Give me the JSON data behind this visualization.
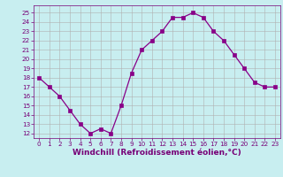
{
  "x": [
    0,
    1,
    2,
    3,
    4,
    5,
    6,
    7,
    8,
    9,
    10,
    11,
    12,
    13,
    14,
    15,
    16,
    17,
    18,
    19,
    20,
    21,
    22,
    23
  ],
  "y": [
    18,
    17,
    16,
    14.5,
    13,
    12,
    12.5,
    12,
    15,
    18.5,
    21,
    22,
    23,
    24.5,
    24.5,
    25,
    24.5,
    23,
    22,
    20.5,
    19,
    17.5,
    17,
    17
  ],
  "line_color": "#880088",
  "marker": "s",
  "marker_size": 2.5,
  "bg_color": "#c8eef0",
  "grid_color": "#b0b0b0",
  "xlabel": "Windchill (Refroidissement éolien,°C)",
  "xlim": [
    -0.5,
    23.5
  ],
  "ylim": [
    11.5,
    25.8
  ],
  "yticks": [
    12,
    13,
    14,
    15,
    16,
    17,
    18,
    19,
    20,
    21,
    22,
    23,
    24,
    25
  ],
  "xticks": [
    0,
    1,
    2,
    3,
    4,
    5,
    6,
    7,
    8,
    9,
    10,
    11,
    12,
    13,
    14,
    15,
    16,
    17,
    18,
    19,
    20,
    21,
    22,
    23
  ],
  "tick_fontsize": 5.2,
  "xlabel_fontsize": 6.5,
  "label_color": "#770077"
}
